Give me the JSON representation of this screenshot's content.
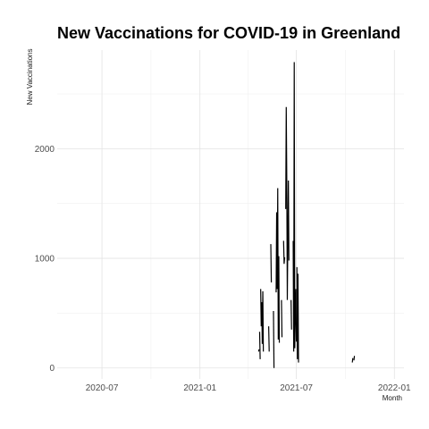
{
  "chart_data": {
    "type": "line",
    "title": "New Vaccinations for COVID-19 in Greenland",
    "xlabel": "Month",
    "ylabel": "New Vaccinations",
    "x_tick_labels": [
      "2020-07",
      "2021-01",
      "2021-07",
      "2022-01"
    ],
    "y_tick_labels": [
      "0",
      "1000",
      "2000"
    ],
    "y_ticks": [
      0,
      1000,
      2000
    ],
    "ylim": [
      -100,
      2900
    ],
    "xlim": [
      "2020-04-08",
      "2022-01-19"
    ],
    "grid": true,
    "segments": [
      [
        [
          "2021-04-21",
          150
        ],
        [
          "2021-04-22",
          170
        ]
      ],
      [
        [
          "2021-04-23",
          330
        ],
        [
          "2021-04-24",
          80
        ]
      ],
      [
        [
          "2021-04-25",
          720
        ],
        [
          "2021-04-26",
          380
        ],
        [
          "2021-04-27",
          600
        ],
        [
          "2021-04-28",
          220
        ],
        [
          "2021-04-29",
          700
        ],
        [
          "2021-04-30",
          150
        ]
      ],
      [
        [
          "2021-05-10",
          380
        ],
        [
          "2021-05-11",
          150
        ]
      ],
      [
        [
          "2021-05-14",
          1130
        ],
        [
          "2021-05-15",
          780
        ]
      ],
      [
        [
          "2021-05-19",
          520
        ],
        [
          "2021-05-20",
          0
        ]
      ],
      [
        [
          "2021-05-24",
          690
        ],
        [
          "2021-05-25",
          1420
        ],
        [
          "2021-05-26",
          720
        ],
        [
          "2021-05-27",
          1640
        ],
        [
          "2021-05-28",
          260
        ],
        [
          "2021-05-29",
          1020
        ],
        [
          "2021-05-30",
          230
        ]
      ],
      [
        [
          "2021-06-03",
          620
        ],
        [
          "2021-06-04",
          280
        ]
      ],
      [
        [
          "2021-06-07",
          1160
        ],
        [
          "2021-06-08",
          950
        ],
        [
          "2021-06-09",
          1010
        ]
      ],
      [
        [
          "2021-06-11",
          1450
        ],
        [
          "2021-06-12",
          2380
        ],
        [
          "2021-06-13",
          1700
        ],
        [
          "2021-06-14",
          620
        ],
        [
          "2021-06-15",
          1210
        ],
        [
          "2021-06-16",
          1710
        ],
        [
          "2021-06-17",
          980
        ]
      ],
      [
        [
          "2021-06-21",
          620
        ],
        [
          "2021-06-22",
          350
        ]
      ],
      [
        [
          "2021-06-25",
          1160
        ],
        [
          "2021-06-26",
          150
        ],
        [
          "2021-06-27",
          2790
        ],
        [
          "2021-06-28",
          180
        ],
        [
          "2021-06-29",
          520
        ],
        [
          "2021-06-30",
          720
        ],
        [
          "2021-07-01",
          240
        ]
      ],
      [
        [
          "2021-07-02",
          920
        ],
        [
          "2021-07-03",
          80
        ],
        [
          "2021-07-04",
          860
        ],
        [
          "2021-07-05",
          50
        ]
      ],
      [
        [
          "2021-10-14",
          50
        ],
        [
          "2021-10-15",
          90
        ]
      ],
      [
        [
          "2021-10-17",
          70
        ],
        [
          "2021-10-18",
          110
        ]
      ]
    ]
  }
}
